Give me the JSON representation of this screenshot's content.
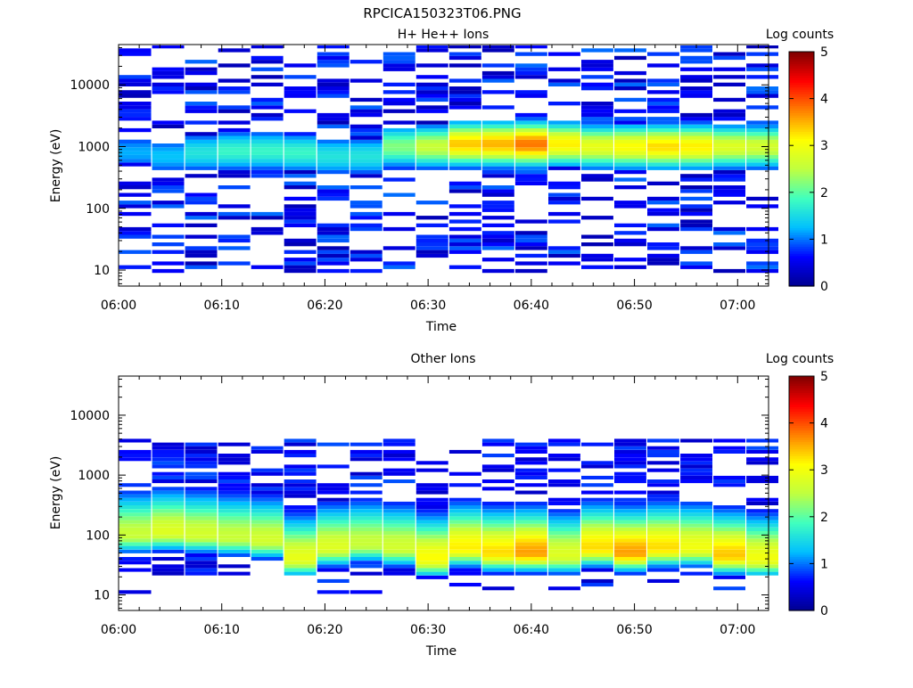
{
  "page_title": "RPCICA150323T06.PNG",
  "chart_data": [
    {
      "type": "heatmap",
      "title": "H+ He++ Ions",
      "xlabel": "Time",
      "ylabel": "Energy (eV)",
      "x_ticks": [
        "06:00",
        "06:10",
        "06:20",
        "06:30",
        "06:40",
        "06:50",
        "07:00"
      ],
      "x_range_minutes": [
        0,
        63
      ],
      "y_scale": "log",
      "y_ticks": [
        "10",
        "100",
        "1000",
        "10000"
      ],
      "y_range": [
        5.5,
        45000
      ],
      "colorbar": {
        "label": "Log counts",
        "range": [
          0,
          5
        ],
        "ticks": [
          "0",
          "1",
          "2",
          "3",
          "4",
          "5"
        ]
      },
      "colormap": [
        "#00008f",
        "#0000ff",
        "#00bfff",
        "#40ffbf",
        "#bfff40",
        "#ffff00",
        "#ff8000",
        "#ff0000",
        "#800000"
      ],
      "time_bins_minutes": [
        1.6,
        4.8,
        8.0,
        11.2,
        14.4,
        17.6,
        20.8,
        24.0,
        27.2,
        30.4,
        33.6,
        36.8,
        40.0,
        43.2,
        46.4,
        49.6,
        52.8,
        56.0,
        59.2,
        62.4
      ],
      "band_center_log_counts": [
        1.2,
        1.3,
        1.6,
        1.8,
        1.8,
        1.8,
        1.6,
        1.6,
        2.2,
        2.6,
        3.4,
        3.5,
        3.8,
        3.2,
        2.9,
        3.1,
        3.3,
        3.2,
        2.8,
        2.7
      ],
      "band_center_eV": [
        800,
        700,
        800,
        850,
        850,
        800,
        700,
        700,
        1000,
        1000,
        1100,
        1100,
        1100,
        1100,
        1000,
        1000,
        1000,
        1000,
        1000,
        1000
      ]
    },
    {
      "type": "heatmap",
      "title": "Other Ions",
      "xlabel": "Time",
      "ylabel": "Energy (eV)",
      "x_ticks": [
        "06:00",
        "06:10",
        "06:20",
        "06:30",
        "06:40",
        "06:50",
        "07:00"
      ],
      "x_range_minutes": [
        0,
        63
      ],
      "y_scale": "log",
      "y_ticks": [
        "10",
        "100",
        "1000",
        "10000"
      ],
      "y_range": [
        5.5,
        45000
      ],
      "colorbar": {
        "label": "Log counts",
        "range": [
          0,
          5
        ],
        "ticks": [
          "0",
          "1",
          "2",
          "3",
          "4",
          "5"
        ]
      },
      "colormap": [
        "#00008f",
        "#0000ff",
        "#00bfff",
        "#40ffbf",
        "#bfff40",
        "#ffff00",
        "#ff8000",
        "#ff0000",
        "#800000"
      ],
      "time_bins_minutes": [
        1.6,
        4.8,
        8.0,
        11.2,
        14.4,
        17.6,
        20.8,
        24.0,
        27.2,
        30.4,
        33.6,
        36.8,
        40.0,
        43.2,
        46.4,
        49.6,
        52.8,
        56.0,
        59.2,
        62.4
      ],
      "band_peak_log_counts": [
        2.6,
        2.8,
        2.7,
        2.6,
        2.7,
        2.9,
        2.8,
        2.6,
        2.7,
        3.1,
        3.2,
        3.3,
        3.6,
        2.8,
        3.3,
        3.6,
        3.3,
        3.0,
        3.4,
        3.0
      ],
      "band_peak_eV": [
        100,
        110,
        100,
        90,
        80,
        40,
        60,
        70,
        60,
        40,
        60,
        50,
        50,
        45,
        60,
        50,
        60,
        60,
        45,
        40
      ]
    }
  ]
}
